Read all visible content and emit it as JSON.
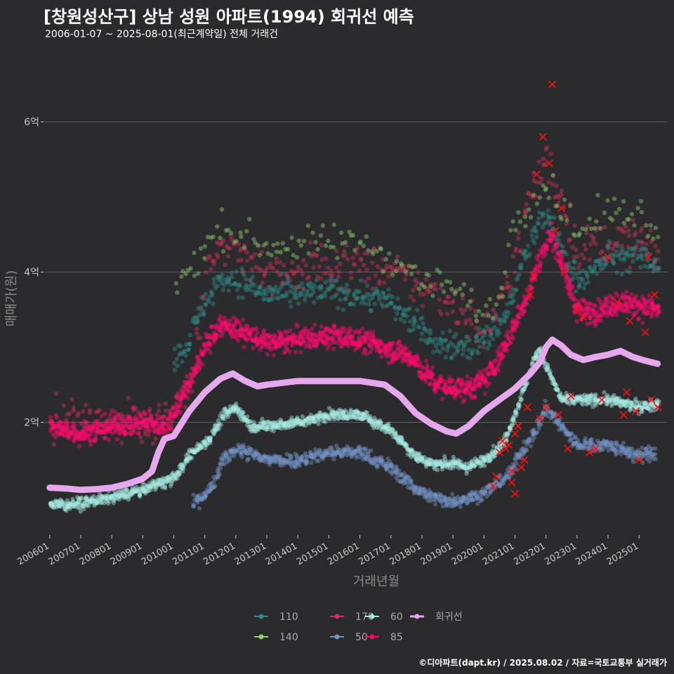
{
  "title": "[창원성산구] 상남 성원 아파트(1994) 회귀선 예측",
  "subtitle": "2006-01-07 ~ 2025-08-01(최근계약일) 전체 거래건",
  "caption": "©디아파트(dapt.kr) / 2025.08.02 / 자료=국토교통부 실거래가",
  "colors": {
    "background": "#2b2b2d",
    "grid": "#5e5e60",
    "text": "#c8c8c8",
    "s110": "#2e8b87",
    "s140": "#8fd16f",
    "s170": "#cf3158",
    "s50": "#7393c6",
    "s60": "#a6ece3",
    "s85": "#ff0a6c",
    "trend": "#e6a8ec",
    "cancel": "#ff1010"
  },
  "chart_data": {
    "type": "scatter",
    "xlabel": "거래년월",
    "ylabel": "매매가(원)",
    "x_unit": "year (decimal)",
    "y_unit": "억원",
    "xlim": [
      2005.8,
      2025.9
    ],
    "ylim": [
      0.5,
      6.8
    ],
    "x_ticks": [
      {
        "x": 2006.0,
        "label": "200601"
      },
      {
        "x": 2007.0,
        "label": "200701"
      },
      {
        "x": 2008.0,
        "label": "200801"
      },
      {
        "x": 2009.0,
        "label": "200901"
      },
      {
        "x": 2010.0,
        "label": "201001"
      },
      {
        "x": 2011.0,
        "label": "201101"
      },
      {
        "x": 2012.0,
        "label": "201201"
      },
      {
        "x": 2013.0,
        "label": "201301"
      },
      {
        "x": 2014.0,
        "label": "201401"
      },
      {
        "x": 2015.0,
        "label": "201501"
      },
      {
        "x": 2016.0,
        "label": "201601"
      },
      {
        "x": 2017.0,
        "label": "201701"
      },
      {
        "x": 2018.0,
        "label": "201801"
      },
      {
        "x": 2019.0,
        "label": "201901"
      },
      {
        "x": 2020.0,
        "label": "202001"
      },
      {
        "x": 2021.0,
        "label": "202101"
      },
      {
        "x": 2022.0,
        "label": "202201"
      },
      {
        "x": 2023.0,
        "label": "202301"
      },
      {
        "x": 2024.0,
        "label": "202401"
      },
      {
        "x": 2025.0,
        "label": "202501"
      }
    ],
    "y_ticks": [
      {
        "y": 2,
        "label": "2억"
      },
      {
        "y": 4,
        "label": "4억"
      },
      {
        "y": 6,
        "label": "6억"
      }
    ],
    "legend": {
      "position": "bottom",
      "items": [
        {
          "name": "110",
          "color": "#2e8b87"
        },
        {
          "name": "170",
          "color": "#cf3158"
        },
        {
          "name": "60",
          "color": "#a6ece3"
        },
        {
          "name": "회귀선",
          "color": "#e6a8ec"
        },
        {
          "name": "140",
          "color": "#8fd16f"
        },
        {
          "name": "50",
          "color": "#7393c6"
        },
        {
          "name": "85",
          "color": "#ff0a6c"
        }
      ]
    },
    "series": [
      {
        "name": "50",
        "color": "#7393c6",
        "spread": 0.09,
        "density": 5,
        "x": [
          2010.6,
          2011.2,
          2011.6,
          2012.0,
          2013.0,
          2014.0,
          2015.0,
          2016.0,
          2017.0,
          2017.7,
          2018.3,
          2019.0,
          2020.0,
          2020.8,
          2021.2,
          2021.7,
          2022.0,
          2022.5,
          2023.0,
          2024.0,
          2025.0,
          2025.5
        ],
        "y": [
          0.9,
          1.1,
          1.5,
          1.65,
          1.5,
          1.5,
          1.6,
          1.6,
          1.4,
          1.15,
          1.0,
          0.95,
          1.05,
          1.3,
          1.6,
          1.9,
          2.2,
          1.95,
          1.7,
          1.7,
          1.55,
          1.6
        ]
      },
      {
        "name": "60",
        "color": "#a6ece3",
        "spread": 0.07,
        "density": 6,
        "x": [
          2006.0,
          2007.0,
          2008.0,
          2009.0,
          2009.6,
          2010.0,
          2010.6,
          2011.2,
          2011.6,
          2012.0,
          2012.5,
          2013.0,
          2014.0,
          2015.0,
          2016.0,
          2017.0,
          2017.8,
          2018.3,
          2019.0,
          2019.5,
          2020.0,
          2020.6,
          2021.0,
          2021.5,
          2021.8,
          2022.0,
          2022.5,
          2023.0,
          2024.0,
          2025.0,
          2025.6
        ],
        "y": [
          0.9,
          0.92,
          1.0,
          1.1,
          1.2,
          1.25,
          1.6,
          1.8,
          2.1,
          2.2,
          1.95,
          1.95,
          2.0,
          2.1,
          2.1,
          1.9,
          1.55,
          1.45,
          1.45,
          1.4,
          1.5,
          1.7,
          2.1,
          2.7,
          3.0,
          2.75,
          2.3,
          2.3,
          2.3,
          2.2,
          2.25
        ]
      },
      {
        "name": "85",
        "color": "#ff0a6c",
        "spread": 0.15,
        "density": 7,
        "x": [
          2006.0,
          2006.5,
          2007.0,
          2008.0,
          2009.0,
          2009.8,
          2010.2,
          2010.6,
          2011.0,
          2011.5,
          2012.0,
          2013.0,
          2014.0,
          2015.0,
          2016.0,
          2016.8,
          2017.5,
          2018.0,
          2018.5,
          2019.0,
          2019.5,
          2020.0,
          2020.5,
          2021.0,
          2021.5,
          2021.9,
          2022.2,
          2022.6,
          2023.0,
          2023.5,
          2024.0,
          2024.5,
          2025.0,
          2025.6
        ],
        "y": [
          1.95,
          1.9,
          1.85,
          1.95,
          2.0,
          1.95,
          2.3,
          2.6,
          3.0,
          3.3,
          3.25,
          3.05,
          3.1,
          3.15,
          3.1,
          3.0,
          2.9,
          2.7,
          2.5,
          2.45,
          2.45,
          2.55,
          2.85,
          3.3,
          3.8,
          4.3,
          4.5,
          4.0,
          3.5,
          3.45,
          3.55,
          3.6,
          3.55,
          3.5
        ]
      },
      {
        "name": "110",
        "color": "#2e8b87",
        "spread": 0.18,
        "density": 3,
        "x": [
          2010.0,
          2010.5,
          2011.0,
          2011.5,
          2012.0,
          2013.0,
          2014.0,
          2015.0,
          2016.0,
          2017.0,
          2017.8,
          2018.5,
          2019.5,
          2020.2,
          2020.8,
          2021.3,
          2022.0,
          2022.5,
          2023.0,
          2023.5,
          2024.0,
          2025.0,
          2025.6
        ],
        "y": [
          2.8,
          3.1,
          3.6,
          3.9,
          3.9,
          3.7,
          3.7,
          3.75,
          3.7,
          3.6,
          3.3,
          3.05,
          3.0,
          3.15,
          3.5,
          4.2,
          4.8,
          4.3,
          3.9,
          4.0,
          4.2,
          4.2,
          4.1
        ]
      },
      {
        "name": "140",
        "color": "#8fd16f",
        "spread": 0.22,
        "density": 1,
        "x": [
          2010.0,
          2010.6,
          2011.0,
          2011.5,
          2012.0,
          2013.0,
          2014.0,
          2015.0,
          2016.0,
          2017.0,
          2018.0,
          2019.0,
          2020.0,
          2020.5,
          2021.0,
          2022.0,
          2023.0,
          2024.0,
          2025.0,
          2025.6
        ],
        "y": [
          3.8,
          4.1,
          4.3,
          4.6,
          4.5,
          4.35,
          4.35,
          4.4,
          4.4,
          4.2,
          3.9,
          3.8,
          3.4,
          3.7,
          4.7,
          5.2,
          4.5,
          4.8,
          4.8,
          4.6
        ]
      },
      {
        "name": "170",
        "color": "#cf3158",
        "spread": 0.28,
        "density": 2,
        "x": [
          2006.0,
          2007.0,
          2008.0,
          2009.0,
          2010.0,
          2010.6,
          2011.0,
          2011.5,
          2012.0,
          2013.0,
          2014.0,
          2015.0,
          2016.0,
          2017.0,
          2018.0,
          2019.0,
          2020.0,
          2020.5,
          2021.0,
          2021.5,
          2022.0,
          2022.5,
          2023.0,
          2024.0,
          2025.0,
          2025.6
        ],
        "y": [
          2.0,
          2.0,
          2.0,
          2.0,
          2.1,
          2.6,
          3.8,
          4.3,
          4.3,
          4.0,
          4.0,
          4.1,
          4.1,
          4.0,
          3.8,
          3.6,
          3.2,
          3.5,
          4.2,
          5.0,
          5.5,
          5.0,
          4.3,
          4.4,
          4.4,
          4.2
        ]
      }
    ],
    "trend": {
      "name": "회귀선",
      "color": "#e6a8ec",
      "x": [
        2006.0,
        2006.5,
        2007.0,
        2007.5,
        2008.0,
        2008.5,
        2009.0,
        2009.3,
        2009.5,
        2009.7,
        2010.0,
        2010.5,
        2011.0,
        2011.5,
        2011.9,
        2012.3,
        2012.7,
        2013.0,
        2014.0,
        2015.0,
        2016.0,
        2016.8,
        2017.3,
        2017.8,
        2018.3,
        2018.8,
        2019.1,
        2019.5,
        2020.0,
        2020.5,
        2021.0,
        2021.5,
        2021.8,
        2022.0,
        2022.2,
        2022.5,
        2022.8,
        2023.2,
        2023.6,
        2024.0,
        2024.4,
        2024.8,
        2025.2,
        2025.6
      ],
      "y": [
        1.13,
        1.12,
        1.1,
        1.11,
        1.13,
        1.18,
        1.25,
        1.35,
        1.6,
        1.78,
        1.82,
        2.15,
        2.4,
        2.58,
        2.65,
        2.55,
        2.48,
        2.5,
        2.55,
        2.55,
        2.55,
        2.5,
        2.35,
        2.12,
        1.98,
        1.88,
        1.85,
        1.95,
        2.15,
        2.3,
        2.45,
        2.65,
        2.8,
        3.0,
        3.1,
        3.02,
        2.9,
        2.83,
        2.87,
        2.9,
        2.95,
        2.87,
        2.82,
        2.78
      ]
    },
    "cancelled": [
      {
        "x": 2020.3,
        "y": 1.15
      },
      {
        "x": 2020.4,
        "y": 1.28
      },
      {
        "x": 2020.5,
        "y": 1.6
      },
      {
        "x": 2020.6,
        "y": 1.75
      },
      {
        "x": 2020.7,
        "y": 1.65
      },
      {
        "x": 2020.8,
        "y": 1.7
      },
      {
        "x": 2020.9,
        "y": 1.35
      },
      {
        "x": 2020.9,
        "y": 1.2
      },
      {
        "x": 2021.0,
        "y": 1.05
      },
      {
        "x": 2021.0,
        "y": 1.85
      },
      {
        "x": 2021.1,
        "y": 1.95
      },
      {
        "x": 2021.2,
        "y": 1.4
      },
      {
        "x": 2021.3,
        "y": 1.5
      },
      {
        "x": 2021.4,
        "y": 2.2
      },
      {
        "x": 2021.5,
        "y": 3.7
      },
      {
        "x": 2021.6,
        "y": 3.95
      },
      {
        "x": 2021.7,
        "y": 5.3
      },
      {
        "x": 2021.8,
        "y": 2.05
      },
      {
        "x": 2021.9,
        "y": 5.8
      },
      {
        "x": 2022.0,
        "y": 2.2
      },
      {
        "x": 2022.1,
        "y": 5.45
      },
      {
        "x": 2022.2,
        "y": 6.5
      },
      {
        "x": 2022.3,
        "y": 4.55
      },
      {
        "x": 2022.4,
        "y": 2.1
      },
      {
        "x": 2022.5,
        "y": 4.85
      },
      {
        "x": 2022.6,
        "y": 4.0
      },
      {
        "x": 2022.7,
        "y": 1.65
      },
      {
        "x": 2022.8,
        "y": 2.35
      },
      {
        "x": 2023.0,
        "y": 3.5
      },
      {
        "x": 2023.2,
        "y": 3.4
      },
      {
        "x": 2023.4,
        "y": 1.6
      },
      {
        "x": 2023.6,
        "y": 1.65
      },
      {
        "x": 2023.8,
        "y": 2.3
      },
      {
        "x": 2024.0,
        "y": 4.2
      },
      {
        "x": 2024.3,
        "y": 3.6
      },
      {
        "x": 2024.5,
        "y": 2.1
      },
      {
        "x": 2024.6,
        "y": 2.4
      },
      {
        "x": 2024.7,
        "y": 3.35
      },
      {
        "x": 2024.9,
        "y": 2.15
      },
      {
        "x": 2025.0,
        "y": 1.5
      },
      {
        "x": 2025.2,
        "y": 3.2
      },
      {
        "x": 2025.3,
        "y": 4.2
      },
      {
        "x": 2025.4,
        "y": 2.3
      },
      {
        "x": 2025.5,
        "y": 3.7
      },
      {
        "x": 2025.6,
        "y": 2.2
      }
    ]
  }
}
